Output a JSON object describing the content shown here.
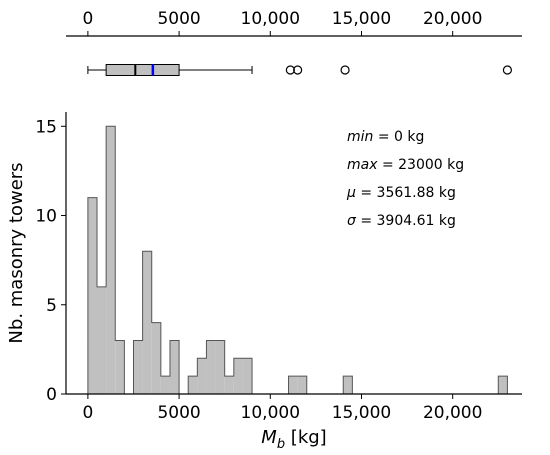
{
  "chart_data": [
    {
      "type": "box",
      "xlim": [
        -1200,
        23800
      ],
      "x_ticks": [
        0,
        5000,
        10000,
        15000,
        20000
      ],
      "x_tick_labels": [
        "0",
        "5000",
        "10,000",
        "15,000",
        "20,000"
      ],
      "tick_position": "top",
      "box": {
        "whisker_low": 0,
        "q1": 1000,
        "median": 2600,
        "mean": 3561.88,
        "q3": 5000,
        "whisker_high": 9000,
        "outliers": [
          11100,
          11500,
          14100,
          23000
        ],
        "box_color": "#c0c0c0",
        "mean_color": "#0000ff",
        "median_color": "#000000"
      }
    },
    {
      "type": "histogram",
      "xlim": [
        -1200,
        23800
      ],
      "ylim": [
        0,
        15.8
      ],
      "x_ticks": [
        0,
        5000,
        10000,
        15000,
        20000
      ],
      "x_tick_labels": [
        "0",
        "5000",
        "10,000",
        "15,000",
        "20,000"
      ],
      "y_ticks": [
        0,
        5,
        10,
        15
      ],
      "y_tick_labels": [
        "0",
        "5",
        "10",
        "15"
      ],
      "xlabel_main": "M",
      "xlabel_sub": "b",
      "xlabel_unit": " [kg]",
      "ylabel": "Nb. masonry towers",
      "bar_color": "#c0c0c0",
      "edge_color": "#555555",
      "bin_width": 500,
      "bins": [
        {
          "x": 0,
          "count": 11
        },
        {
          "x": 500,
          "count": 6
        },
        {
          "x": 1000,
          "count": 15
        },
        {
          "x": 1500,
          "count": 3
        },
        {
          "x": 2500,
          "count": 3
        },
        {
          "x": 3000,
          "count": 8
        },
        {
          "x": 3500,
          "count": 4
        },
        {
          "x": 4000,
          "count": 1
        },
        {
          "x": 4500,
          "count": 3
        },
        {
          "x": 5500,
          "count": 1
        },
        {
          "x": 6000,
          "count": 2
        },
        {
          "x": 6500,
          "count": 3
        },
        {
          "x": 7000,
          "count": 3
        },
        {
          "x": 7500,
          "count": 1
        },
        {
          "x": 8000,
          "count": 2
        },
        {
          "x": 8500,
          "count": 2
        },
        {
          "x": 11000,
          "count": 1
        },
        {
          "x": 11500,
          "count": 1
        },
        {
          "x": 14000,
          "count": 1
        },
        {
          "x": 22500,
          "count": 1
        }
      ],
      "stats": [
        {
          "name": "min",
          "eq": " = 0 kg"
        },
        {
          "name": "max",
          "eq": " = 23000 kg"
        },
        {
          "name": "μ",
          "eq": " = 3561.88 kg"
        },
        {
          "name": "σ",
          "eq": " = 3904.61 kg"
        }
      ]
    }
  ]
}
